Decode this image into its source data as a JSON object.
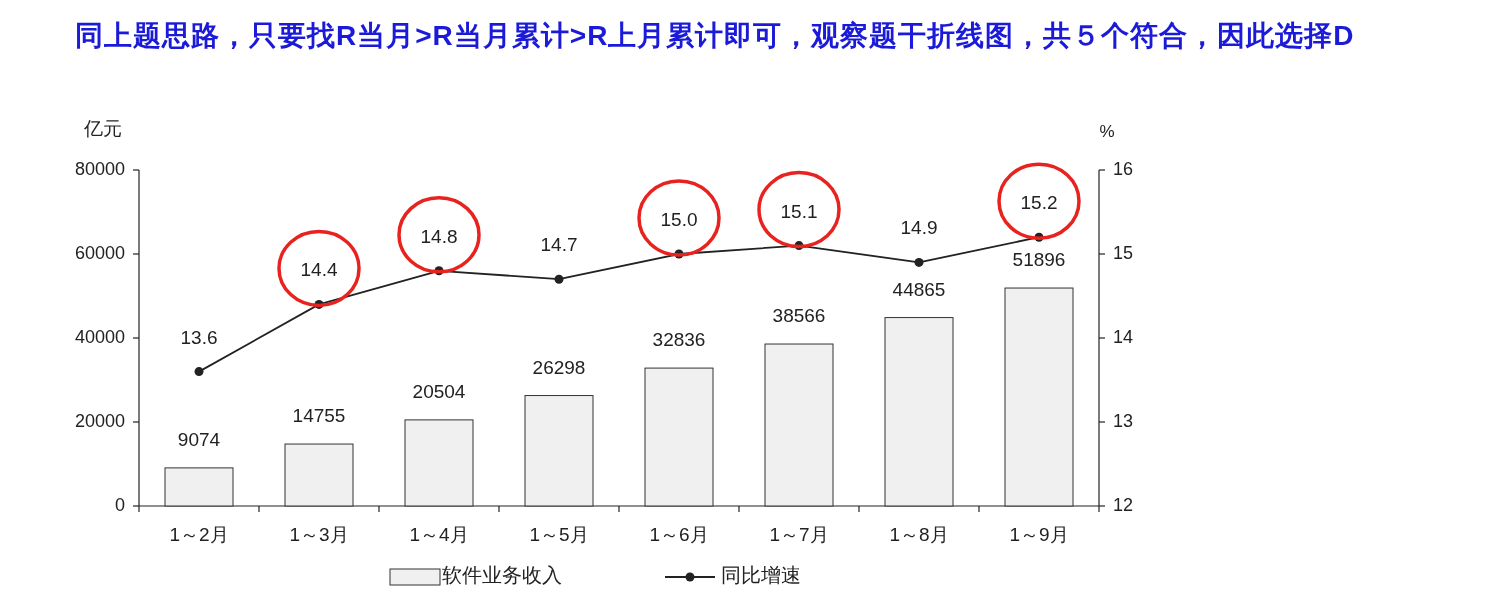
{
  "chart_data": {
    "type": "bar",
    "title": "同上题思路，只要找R当月>R当月累计>R上月累计即可，观察题干折线图，共５个符合，因此选择D",
    "ylabel": "亿元",
    "y2label": "%",
    "categories": [
      "1～2月",
      "1～3月",
      "1～4月",
      "1～5月",
      "1～6月",
      "1～7月",
      "1～8月",
      "1～9月"
    ],
    "series": [
      {
        "name": "软件业务收入",
        "color": "#f0f0f0",
        "values": [
          9074,
          14755,
          20504,
          26298,
          32836,
          38566,
          44865,
          51896
        ],
        "value_labels": [
          "9074",
          "14755",
          "20504",
          "26298",
          "32836",
          "38566",
          "44865",
          "51896"
        ]
      },
      {
        "name": "同比增速",
        "type": "line",
        "axis": "y2",
        "color": "#222222",
        "values": [
          13.6,
          14.4,
          14.8,
          14.7,
          15.0,
          15.1,
          14.9,
          15.2
        ],
        "value_labels": [
          "13.6",
          "14.4",
          "14.8",
          "14.7",
          "15.0",
          "15.1",
          "14.9",
          "15.2"
        ]
      }
    ],
    "ylim": [
      0,
      80000
    ],
    "yticks": [
      0,
      20000,
      40000,
      60000,
      80000
    ],
    "y2lim": [
      12,
      16
    ],
    "y2ticks": [
      12,
      13,
      14,
      15,
      16
    ],
    "legend": "bottom",
    "marker": "circle",
    "line_style": "solid",
    "grid": false
  }
}
